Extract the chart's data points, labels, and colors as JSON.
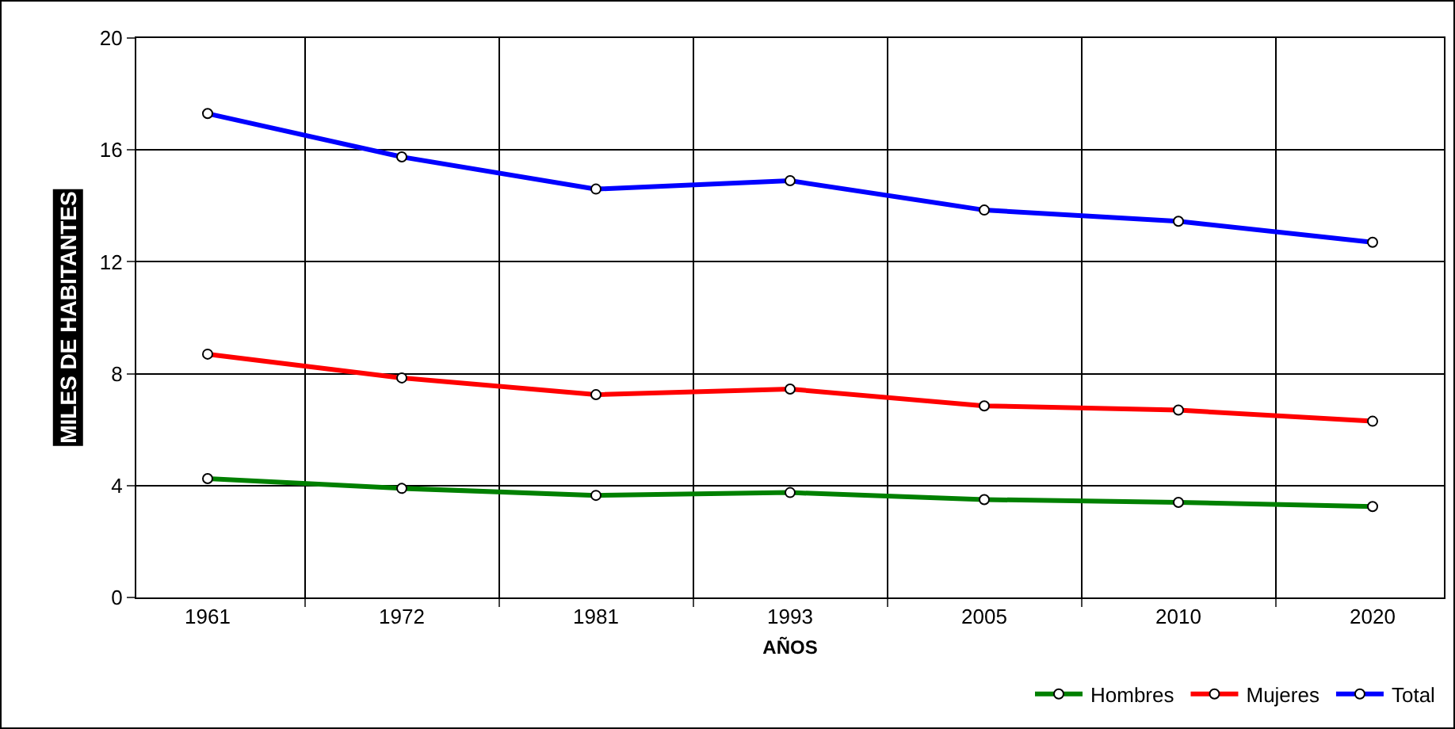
{
  "chart_data": {
    "type": "line",
    "xlabel": "AÑOS",
    "ylabel": "MILES DE HABITANTES",
    "categories": [
      "1961",
      "1972",
      "1981",
      "1993",
      "2005",
      "2010",
      "2020"
    ],
    "series": [
      {
        "name": "Hombres",
        "color": "#008000",
        "values": [
          4.25,
          3.9,
          3.65,
          3.75,
          3.5,
          3.4,
          3.25
        ]
      },
      {
        "name": "Mujeres",
        "color": "#ff0000",
        "values": [
          8.7,
          7.85,
          7.25,
          7.45,
          6.85,
          6.7,
          6.3
        ]
      },
      {
        "name": "Total",
        "color": "#0000ff",
        "values": [
          17.3,
          15.75,
          14.6,
          14.9,
          13.85,
          13.45,
          12.7
        ]
      }
    ],
    "ylim": [
      0,
      20
    ],
    "yticks": [
      0,
      4,
      8,
      12,
      16,
      20
    ],
    "grid": true,
    "legend": "bottom right",
    "marker": "circle",
    "line_style": "solid"
  }
}
